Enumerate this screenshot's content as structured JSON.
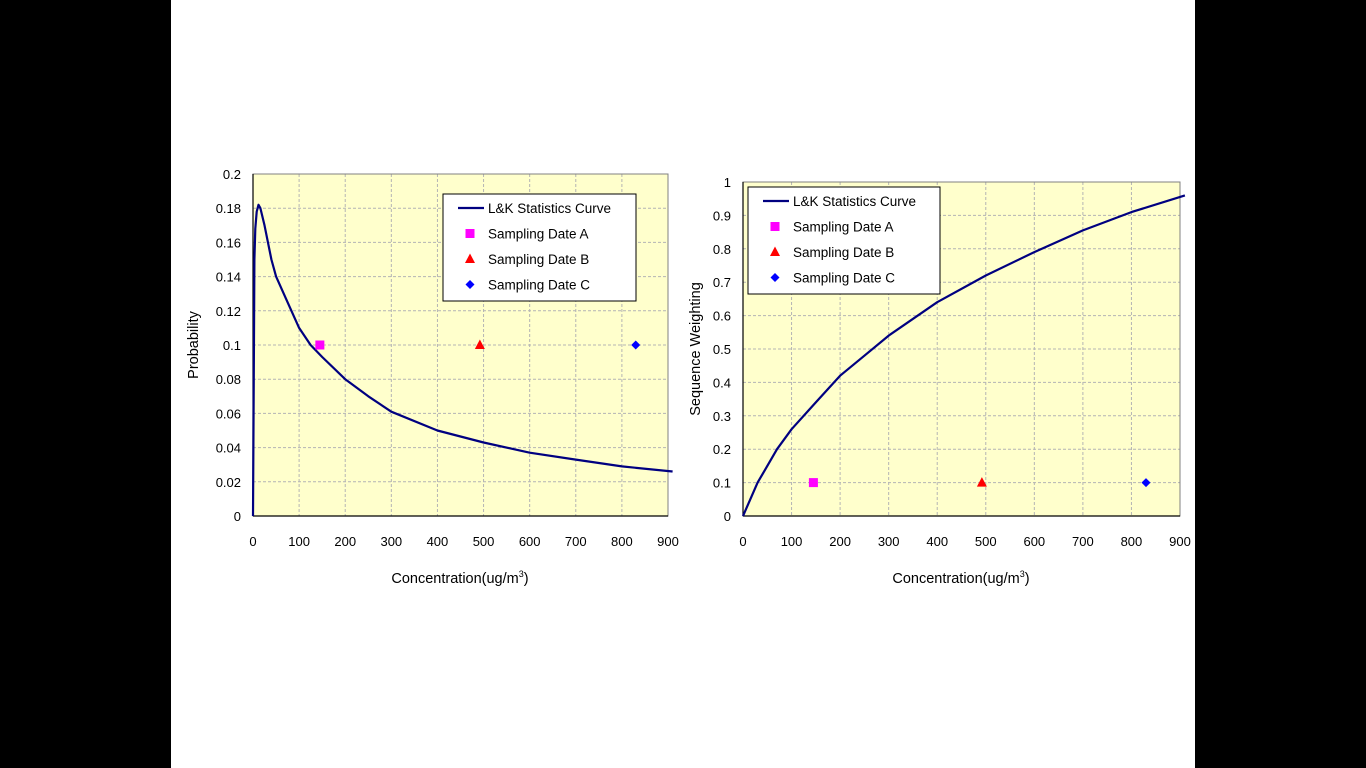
{
  "chart_data": [
    {
      "type": "line",
      "ylabel": "Probability",
      "xlabel": "Concentration(ug/m",
      "xlabel_sup": "3",
      "xlabel_close": ")",
      "xlim": [
        0,
        900
      ],
      "ylim": [
        0,
        0.2
      ],
      "xticks": [
        "0",
        "100",
        "200",
        "300",
        "400",
        "500",
        "600",
        "700",
        "800",
        "900"
      ],
      "yticks": [
        "0",
        "0.02",
        "0.04",
        "0.06",
        "0.08",
        "0.1",
        "0.12",
        "0.14",
        "0.16",
        "0.18",
        "0.2"
      ],
      "grid": true,
      "legend_position": "top-right",
      "series": [
        {
          "name": "L&K Statistics Curve",
          "kind": "line",
          "color": "#000080",
          "x": [
            0,
            2,
            3,
            5,
            8,
            12,
            16,
            25,
            40,
            50,
            75,
            100,
            125,
            150,
            200,
            250,
            300,
            400,
            500,
            600,
            700,
            800,
            910
          ],
          "y": [
            0,
            0.095,
            0.15,
            0.168,
            0.178,
            0.182,
            0.18,
            0.17,
            0.15,
            0.14,
            0.125,
            0.11,
            0.1,
            0.093,
            0.08,
            0.07,
            0.061,
            0.05,
            0.043,
            0.037,
            0.033,
            0.029,
            0.026
          ]
        },
        {
          "name": "Sampling Date A",
          "kind": "square",
          "color": "#FF00FF",
          "x": [
            145
          ],
          "y": [
            0.1
          ]
        },
        {
          "name": "Sampling Date B",
          "kind": "triangle",
          "color": "#FF0000",
          "x": [
            492
          ],
          "y": [
            0.1
          ]
        },
        {
          "name": "Sampling Date C",
          "kind": "diamond",
          "color": "#0000FF",
          "x": [
            830
          ],
          "y": [
            0.1
          ]
        }
      ]
    },
    {
      "type": "line",
      "ylabel": "Sequence Weighting",
      "xlabel": "Concentration(ug/m",
      "xlabel_sup": "3",
      "xlabel_close": ")",
      "xlim": [
        0,
        900
      ],
      "ylim": [
        0,
        1
      ],
      "xticks": [
        "0",
        "100",
        "200",
        "300",
        "400",
        "500",
        "600",
        "700",
        "800",
        "900"
      ],
      "yticks": [
        "0",
        "0.1",
        "0.2",
        "0.3",
        "0.4",
        "0.5",
        "0.6",
        "0.7",
        "0.8",
        "0.9",
        "1"
      ],
      "grid": true,
      "legend_position": "top-left",
      "series": [
        {
          "name": "L&K Statistics Curve",
          "kind": "line",
          "color": "#000080",
          "x": [
            0,
            15,
            30,
            50,
            70,
            100,
            150,
            200,
            250,
            300,
            400,
            500,
            600,
            700,
            800,
            910
          ],
          "y": [
            0,
            0.05,
            0.1,
            0.15,
            0.2,
            0.26,
            0.34,
            0.42,
            0.48,
            0.54,
            0.64,
            0.72,
            0.79,
            0.855,
            0.91,
            0.96
          ]
        },
        {
          "name": "Sampling Date A",
          "kind": "square",
          "color": "#FF00FF",
          "x": [
            145
          ],
          "y": [
            0.1
          ]
        },
        {
          "name": "Sampling Date B",
          "kind": "triangle",
          "color": "#FF0000",
          "x": [
            492
          ],
          "y": [
            0.1
          ]
        },
        {
          "name": "Sampling Date C",
          "kind": "diamond",
          "color": "#0000FF",
          "x": [
            830
          ],
          "y": [
            0.1
          ]
        }
      ]
    }
  ]
}
